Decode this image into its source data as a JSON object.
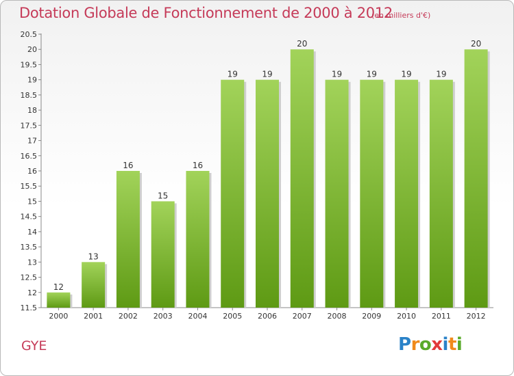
{
  "chart_data": {
    "type": "bar",
    "title": "Dotation Globale de Fonctionnement de 2000 à 2012",
    "subtitle": "(en milliers d'€)",
    "xlabel": "",
    "ylabel": "",
    "categories": [
      "2000",
      "2001",
      "2002",
      "2003",
      "2004",
      "2005",
      "2006",
      "2007",
      "2008",
      "2009",
      "2010",
      "2011",
      "2012"
    ],
    "values": [
      12,
      13,
      16,
      15,
      16,
      19,
      19,
      20,
      19,
      19,
      19,
      19,
      20
    ],
    "data_labels": [
      "12",
      "13",
      "16",
      "15",
      "16",
      "19",
      "19",
      "20",
      "19",
      "19",
      "19",
      "19",
      "20"
    ],
    "ylim": [
      11.5,
      20.5
    ],
    "yticks": [
      "11.5",
      "12",
      "12.5",
      "13",
      "13.5",
      "14",
      "14.5",
      "15",
      "15.5",
      "16",
      "16.5",
      "17",
      "17.5",
      "18",
      "18.5",
      "19",
      "19.5",
      "20",
      "20.5"
    ],
    "grid": false,
    "bar_color": "#7ab52f"
  },
  "footer": {
    "place": "GYE",
    "brand_letters": [
      "P",
      "r",
      "o",
      "x",
      "i",
      "t",
      "i"
    ]
  },
  "colors": {
    "title": "#c53a58",
    "bar_top": "#a2d35a",
    "bar_bottom": "#5e9a14",
    "brand": [
      "#2a82c8",
      "#f08a1c",
      "#5aaa2a",
      "#e23a3a",
      "#2a82c8",
      "#f08a1c",
      "#5aaa2a"
    ]
  }
}
